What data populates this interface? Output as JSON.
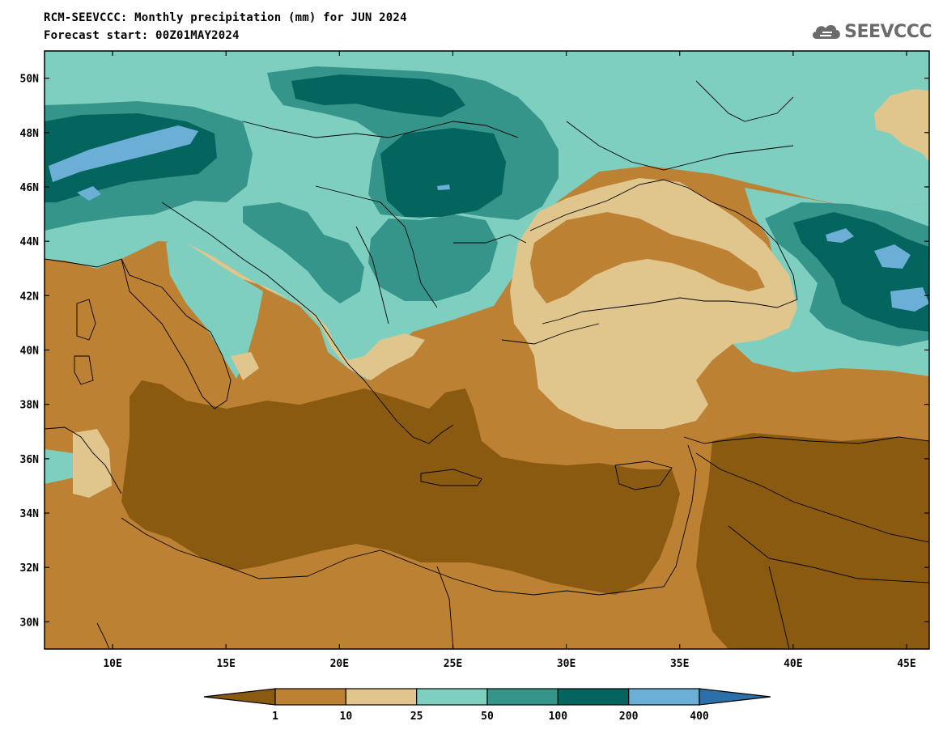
{
  "title": "RCM-SEEVCCC: Monthly precipitation (mm) for JUN 2024",
  "subtitle": "Forecast start: 00Z01MAY2024",
  "logo": {
    "text": "SEEVCCC",
    "icon": "cloud-icon"
  },
  "map": {
    "lon_range": [
      7,
      46
    ],
    "lat_range": [
      29,
      51
    ],
    "x_ticks": [
      {
        "value": 10,
        "label": "10E"
      },
      {
        "value": 15,
        "label": "15E"
      },
      {
        "value": 20,
        "label": "20E"
      },
      {
        "value": 25,
        "label": "25E"
      },
      {
        "value": 30,
        "label": "30E"
      },
      {
        "value": 35,
        "label": "35E"
      },
      {
        "value": 40,
        "label": "40E"
      },
      {
        "value": 45,
        "label": "45E"
      }
    ],
    "y_ticks": [
      {
        "value": 30,
        "label": "30N"
      },
      {
        "value": 32,
        "label": "32N"
      },
      {
        "value": 34,
        "label": "34N"
      },
      {
        "value": 36,
        "label": "36N"
      },
      {
        "value": 38,
        "label": "38N"
      },
      {
        "value": 40,
        "label": "40N"
      },
      {
        "value": 42,
        "label": "42N"
      },
      {
        "value": 44,
        "label": "44N"
      },
      {
        "value": 46,
        "label": "46N"
      },
      {
        "value": 48,
        "label": "48N"
      },
      {
        "value": 50,
        "label": "50N"
      }
    ]
  },
  "colorbar": {
    "colors": [
      "#8a5a10",
      "#bd8134",
      "#e0c58c",
      "#7fcfc0",
      "#35958b",
      "#03655d",
      "#6baed6",
      "#2d6fa8"
    ],
    "labels": [
      "1",
      "10",
      "25",
      "50",
      "100",
      "200",
      "400"
    ]
  }
}
